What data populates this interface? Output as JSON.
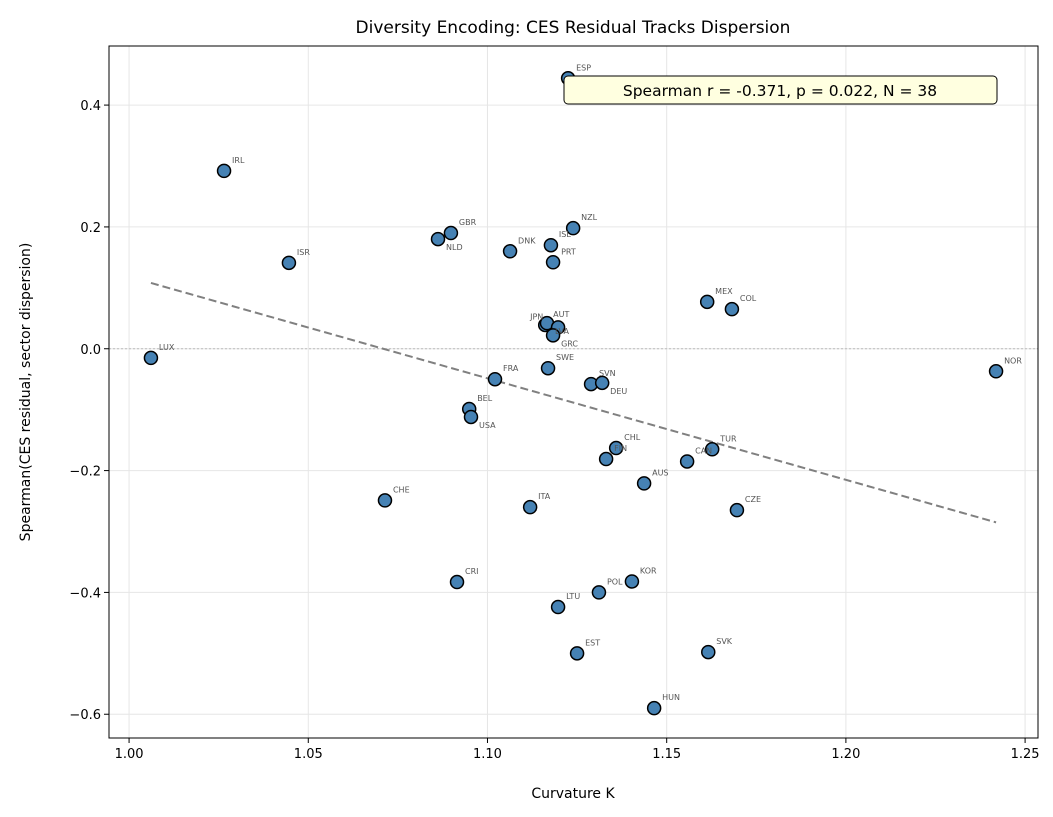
{
  "chart_data": {
    "type": "scatter",
    "title": "Diversity Encoding: CES Residual Tracks Dispersion",
    "xlabel": "Curvature K",
    "ylabel": "Spearman(CES residual, sector dispersion)",
    "xlim": [
      0.9944,
      1.2536
    ],
    "ylim": [
      -0.639,
      0.497
    ],
    "xticks": [
      "1.00",
      "1.05",
      "1.10",
      "1.15",
      "1.20",
      "1.25"
    ],
    "xtick_values": [
      1.0,
      1.05,
      1.1,
      1.15,
      1.2,
      1.25
    ],
    "yticks": [
      "−0.6",
      "−0.4",
      "−0.2",
      "0.0",
      "0.2",
      "0.4"
    ],
    "ytick_values": [
      -0.6,
      -0.4,
      -0.2,
      0.0,
      0.2,
      0.4
    ],
    "grid": true,
    "zero_line": 0.0,
    "point_color": "#4682b4",
    "trend_line": {
      "color": "#808080",
      "style": "dashed",
      "x": [
        1.0061,
        1.2419
      ],
      "y": [
        0.108,
        -0.285
      ]
    },
    "annotation": "Spearman r = -0.371, p = 0.022, N = 38",
    "points": [
      {
        "label": "ESP",
        "x": 1.1225,
        "y": 0.444
      },
      {
        "label": "IRL",
        "x": 1.0265,
        "y": 0.292
      },
      {
        "label": "ISR",
        "x": 1.0446,
        "y": 0.141
      },
      {
        "label": "LUX",
        "x": 1.0061,
        "y": -0.015
      },
      {
        "label": "GBR",
        "x": 1.0898,
        "y": 0.19
      },
      {
        "label": "NLD",
        "x": 1.0862,
        "y": 0.18
      },
      {
        "label": "DNK",
        "x": 1.1063,
        "y": 0.16
      },
      {
        "label": "ISL",
        "x": 1.1177,
        "y": 0.17
      },
      {
        "label": "PRT",
        "x": 1.1183,
        "y": 0.142
      },
      {
        "label": "NZL",
        "x": 1.1239,
        "y": 0.198
      },
      {
        "label": "AUT",
        "x": 1.1161,
        "y": 0.039
      },
      {
        "label": "LVA",
        "x": 1.1166,
        "y": 0.042
      },
      {
        "label": "JPN",
        "x": 1.1197,
        "y": 0.035
      },
      {
        "label": "GRC",
        "x": 1.1183,
        "y": 0.022
      },
      {
        "label": "SWE",
        "x": 1.1169,
        "y": -0.032
      },
      {
        "label": "FRA",
        "x": 1.1021,
        "y": -0.05
      },
      {
        "label": "SVN",
        "x": 1.1289,
        "y": -0.058
      },
      {
        "label": "DEU",
        "x": 1.132,
        "y": -0.056
      },
      {
        "label": "BEL",
        "x": 1.0949,
        "y": -0.099
      },
      {
        "label": "USA",
        "x": 1.0954,
        "y": -0.112
      },
      {
        "label": "CHL",
        "x": 1.1359,
        "y": -0.163
      },
      {
        "label": "FIN",
        "x": 1.1331,
        "y": -0.181
      },
      {
        "label": "CAN",
        "x": 1.1557,
        "y": -0.185
      },
      {
        "label": "TUR",
        "x": 1.1627,
        "y": -0.165
      },
      {
        "label": "AUS",
        "x": 1.1437,
        "y": -0.221
      },
      {
        "label": "CZE",
        "x": 1.1696,
        "y": -0.265
      },
      {
        "label": "MEX",
        "x": 1.1613,
        "y": 0.077
      },
      {
        "label": "COL",
        "x": 1.1682,
        "y": 0.065
      },
      {
        "label": "NOR",
        "x": 1.2419,
        "y": -0.037
      },
      {
        "label": "CHE",
        "x": 1.0714,
        "y": -0.249
      },
      {
        "label": "ITA",
        "x": 1.1119,
        "y": -0.26
      },
      {
        "label": "CRI",
        "x": 1.0915,
        "y": -0.383
      },
      {
        "label": "POL",
        "x": 1.1311,
        "y": -0.4
      },
      {
        "label": "KOR",
        "x": 1.1403,
        "y": -0.382
      },
      {
        "label": "LTU",
        "x": 1.1197,
        "y": -0.424
      },
      {
        "label": "EST",
        "x": 1.125,
        "y": -0.5
      },
      {
        "label": "SVK",
        "x": 1.1616,
        "y": -0.498
      },
      {
        "label": "HUN",
        "x": 1.1465,
        "y": -0.59
      }
    ]
  }
}
